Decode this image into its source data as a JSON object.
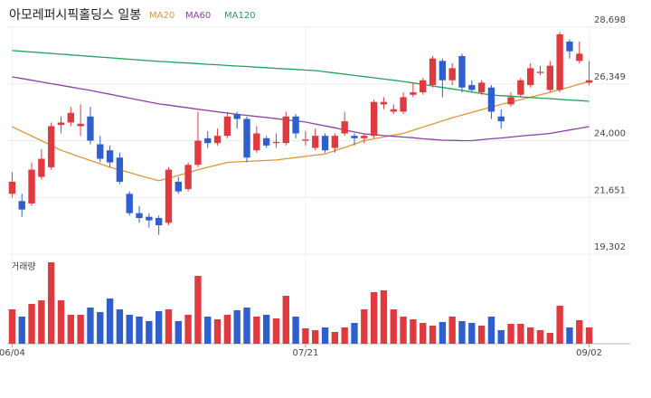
{
  "chart_data": {
    "type": "candlestick",
    "title": "아모레퍼시픽홀딩스 일봉",
    "categories": [
      "06/04",
      null,
      null,
      null,
      null,
      null,
      null,
      null,
      null,
      null,
      null,
      null,
      null,
      null,
      null,
      null,
      null,
      null,
      null,
      null,
      null,
      null,
      null,
      null,
      null,
      null,
      null,
      null,
      null,
      null,
      "07/21",
      null,
      null,
      null,
      null,
      null,
      null,
      null,
      null,
      null,
      null,
      null,
      null,
      null,
      null,
      null,
      null,
      null,
      null,
      null,
      null,
      null,
      null,
      null,
      null,
      null,
      null,
      null,
      null,
      "09/02"
    ],
    "open": [
      21800,
      21500,
      21400,
      22500,
      22900,
      24650,
      24750,
      24600,
      25000,
      23850,
      23600,
      23300,
      21800,
      21000,
      20850,
      20800,
      20600,
      22300,
      22000,
      23000,
      24100,
      23900,
      24200,
      25100,
      24900,
      23600,
      24100,
      23900,
      23900,
      25000,
      24000,
      23700,
      24200,
      23700,
      24300,
      24200,
      24100,
      24200,
      25500,
      25200,
      25200,
      25900,
      26000,
      26300,
      27300,
      26500,
      27500,
      26300,
      26000,
      26200,
      25000,
      25500,
      25900,
      26300,
      26800,
      26100,
      26100,
      28100,
      27300,
      26400
    ],
    "high": [
      22700,
      21800,
      23100,
      23650,
      24750,
      25000,
      25400,
      25500,
      25400,
      24200,
      23800,
      23500,
      21900,
      21300,
      21000,
      20900,
      22900,
      22500,
      23100,
      25200,
      24400,
      24500,
      25200,
      25200,
      25000,
      24600,
      24200,
      24300,
      25200,
      25100,
      24400,
      24500,
      24300,
      24300,
      25200,
      24300,
      24300,
      25700,
      25800,
      25500,
      26000,
      26400,
      26600,
      27500,
      27400,
      27200,
      27600,
      26500,
      26500,
      26300,
      25300,
      26000,
      26600,
      27200,
      27100,
      27300,
      28500,
      28200,
      28100,
      27300
    ],
    "low": [
      21650,
      20850,
      21300,
      22400,
      22800,
      24300,
      24600,
      24200,
      23850,
      23100,
      22900,
      22200,
      20900,
      20600,
      20400,
      20100,
      20500,
      21800,
      21900,
      22900,
      23700,
      23800,
      24100,
      24500,
      23100,
      23500,
      23700,
      23700,
      23800,
      24100,
      23800,
      23600,
      23500,
      23500,
      24200,
      23800,
      23900,
      24100,
      25300,
      25100,
      25100,
      25800,
      25900,
      26200,
      25800,
      26300,
      26000,
      26000,
      25900,
      24900,
      24500,
      25400,
      25800,
      26200,
      26700,
      26000,
      26000,
      27400,
      27200,
      26300
    ],
    "close": [
      22300,
      21150,
      22800,
      23250,
      24600,
      24750,
      25150,
      24700,
      24000,
      23250,
      23100,
      22300,
      21000,
      20800,
      20700,
      20500,
      22800,
      21900,
      23000,
      24000,
      23900,
      24200,
      25000,
      24900,
      23300,
      24300,
      23800,
      23950,
      25000,
      24300,
      24050,
      24200,
      23600,
      24200,
      24800,
      24100,
      24200,
      25600,
      25600,
      25300,
      25800,
      26000,
      26500,
      27400,
      26500,
      27000,
      26200,
      26100,
      26400,
      25200,
      24800,
      25800,
      26500,
      27000,
      26850,
      27100,
      28400,
      27700,
      27600,
      26500
    ],
    "up_color": "#e0393e",
    "down_color": "#2f5fcc",
    "ylim": [
      19302,
      28698
    ],
    "yticks": [
      {
        "value": 19302,
        "label": "19,302"
      },
      {
        "value": 21651,
        "label": "21,651"
      },
      {
        "value": 24000,
        "label": "24,000"
      },
      {
        "value": 26349,
        "label": "26,349"
      },
      {
        "value": 28698,
        "label": "28,698"
      }
    ],
    "grid": true,
    "series": [
      {
        "name": "MA20",
        "color": "#e0953a",
        "values": [
          24580,
          24380,
          24190,
          24000,
          23800,
          23600,
          23460,
          23320,
          23180,
          23040,
          22900,
          22790,
          22680,
          22560,
          22450,
          22340,
          22450,
          22560,
          22680,
          22790,
          22900,
          23000,
          23100,
          23120,
          23140,
          23160,
          23180,
          23200,
          23250,
          23300,
          23350,
          23400,
          23450,
          23590,
          23720,
          23860,
          24000,
          24080,
          24150,
          24230,
          24300,
          24430,
          24560,
          24690,
          24820,
          24950,
          25060,
          25170,
          25280,
          25390,
          25500,
          25600,
          25700,
          25800,
          25900,
          26000,
          26110,
          26220,
          26340,
          26450
        ]
      },
      {
        "name": "MA60",
        "color": "#8e3ea8",
        "values": [
          26640,
          26570,
          26500,
          26430,
          26360,
          26290,
          26220,
          26150,
          26080,
          26000,
          25920,
          25840,
          25760,
          25680,
          25600,
          25520,
          25470,
          25410,
          25360,
          25300,
          25250,
          25190,
          25140,
          25090,
          25050,
          25000,
          24960,
          24910,
          24860,
          24820,
          24770,
          24690,
          24610,
          24530,
          24440,
          24360,
          24280,
          24250,
          24210,
          24180,
          24150,
          24120,
          24080,
          24050,
          24020,
          24010,
          24000,
          24000,
          24040,
          24080,
          24110,
          24150,
          24190,
          24230,
          24260,
          24300,
          24370,
          24440,
          24510,
          24580
        ]
      },
      {
        "name": "MA120",
        "color": "#1fa35a",
        "values": [
          27730,
          27700,
          27670,
          27640,
          27610,
          27580,
          27550,
          27520,
          27490,
          27460,
          27430,
          27400,
          27370,
          27340,
          27310,
          27280,
          27260,
          27230,
          27210,
          27190,
          27160,
          27140,
          27110,
          27090,
          27070,
          27040,
          27020,
          26990,
          26970,
          26950,
          26920,
          26900,
          26850,
          26800,
          26750,
          26700,
          26650,
          26600,
          26550,
          26500,
          26450,
          26390,
          26330,
          26260,
          26200,
          26140,
          26080,
          26010,
          25950,
          25890,
          25860,
          25840,
          25810,
          25790,
          25760,
          25740,
          25710,
          25680,
          25660,
          25630
        ]
      }
    ],
    "volume": {
      "label": "거래량",
      "values": [
        38,
        30,
        44,
        48,
        90,
        48,
        32,
        32,
        40,
        35,
        50,
        38,
        32,
        30,
        25,
        36,
        38,
        25,
        32,
        75,
        30,
        27,
        32,
        37,
        40,
        30,
        32,
        28,
        53,
        30,
        17,
        15,
        18,
        13,
        18,
        23,
        38,
        57,
        59,
        38,
        30,
        27,
        23,
        20,
        24,
        30,
        25,
        23,
        20,
        30,
        15,
        22,
        22,
        18,
        15,
        12,
        42,
        18,
        26,
        18
      ]
    }
  }
}
